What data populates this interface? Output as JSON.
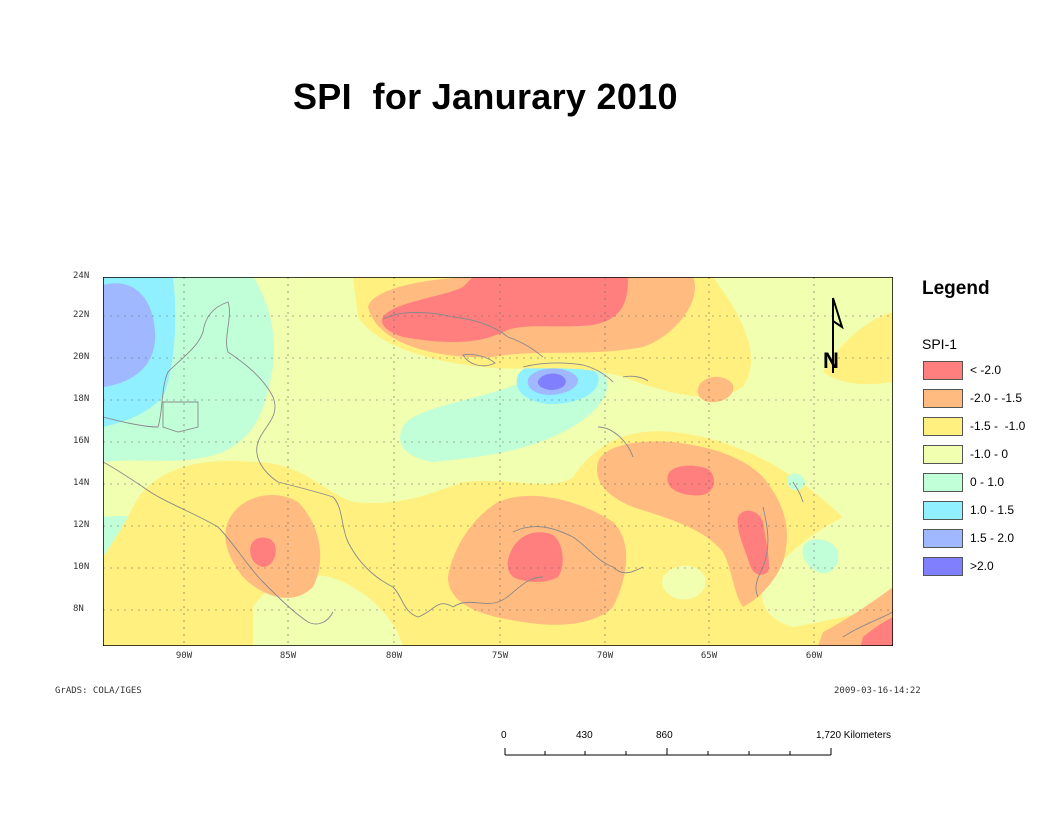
{
  "title": "SPI  for Janurary 2010",
  "map": {
    "lat_labels": [
      "24N",
      "22N",
      "20N",
      "18N",
      "16N",
      "14N",
      "12N",
      "10N",
      "8N"
    ],
    "lon_labels": [
      "90W",
      "85W",
      "80W",
      "75W",
      "70W",
      "65W",
      "60W"
    ],
    "colors": {
      "lt_-2": "#ff7f7f",
      "-2_-1.5": "#ffbb80",
      "-1.5_-1": "#fff080",
      "-1_0": "#f0ffb0",
      "0_1": "#c0ffd8",
      "1_1.5": "#90f0ff",
      "1.5_2": "#a0b8ff",
      "gt_2": "#8080ff"
    }
  },
  "footer": {
    "left": "GrADS: COLA/IGES",
    "right": "2009-03-16-14:22"
  },
  "legend": {
    "title": "Legend",
    "subtitle": "SPI-1",
    "items": [
      {
        "label": "< -2.0",
        "color": "#ff7f7f"
      },
      {
        "label": "-2.0 - -1.5",
        "color": "#ffbb80"
      },
      {
        "label": "-1.5 -  -1.0",
        "color": "#fff080"
      },
      {
        "label": "-1.0 - 0",
        "color": "#f0ffb0"
      },
      {
        "label": "0 - 1.0",
        "color": "#c0ffd8"
      },
      {
        "label": "1.0 - 1.5",
        "color": "#90f0ff"
      },
      {
        "label": "1.5 - 2.0",
        "color": "#a0b8ff"
      },
      {
        "label": ">2.0",
        "color": "#8080ff"
      }
    ]
  },
  "north_arrow": {
    "letter": "N"
  },
  "scale": {
    "labels": [
      "0",
      "430",
      "860",
      "1,720 Kilometers"
    ]
  }
}
